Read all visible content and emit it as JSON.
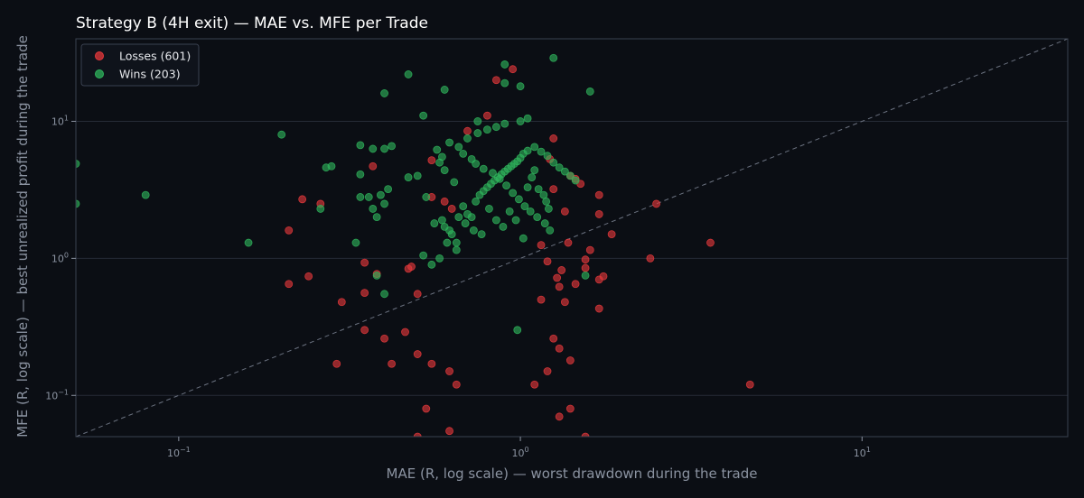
{
  "chart_data": {
    "type": "scatter",
    "title": "Strategy B (4H exit) — MAE vs. MFE per Trade",
    "xlabel": "MAE (R, log scale) — worst drawdown during the trade",
    "ylabel": "MFE (R, log scale) — best unrealized profit during the trade",
    "x_scale": "log",
    "y_scale": "log",
    "xlim": [
      0.05,
      40
    ],
    "ylim": [
      0.05,
      40
    ],
    "x_ticks": [
      {
        "base": "10",
        "exp": "−1",
        "value": 0.1
      },
      {
        "base": "10",
        "exp": "0",
        "value": 1
      },
      {
        "base": "10",
        "exp": "1",
        "value": 10
      }
    ],
    "y_ticks": [
      {
        "base": "10",
        "exp": "−1",
        "value": 0.1
      },
      {
        "base": "10",
        "exp": "0",
        "value": 1
      },
      {
        "base": "10",
        "exp": "1",
        "value": 10
      }
    ],
    "grid": "horizontal major",
    "reference_line": "y = x (dashed)",
    "legend_position": "top-left",
    "series": [
      {
        "name": "Losses (601)",
        "color": "#e5383b",
        "points": [
          [
            1.25,
            7.5
          ],
          [
            0.95,
            24
          ],
          [
            0.85,
            20
          ],
          [
            0.8,
            11
          ],
          [
            0.7,
            8.5
          ],
          [
            0.55,
            5.2
          ],
          [
            0.37,
            4.7
          ],
          [
            0.23,
            2.7
          ],
          [
            0.26,
            2.5
          ],
          [
            0.21,
            1.6
          ],
          [
            0.21,
            0.65
          ],
          [
            0.24,
            0.74
          ],
          [
            0.3,
            0.48
          ],
          [
            0.35,
            0.93
          ],
          [
            0.38,
            0.77
          ],
          [
            0.35,
            0.56
          ],
          [
            0.35,
            0.3
          ],
          [
            0.29,
            0.17
          ],
          [
            0.4,
            0.26
          ],
          [
            0.42,
            0.17
          ],
          [
            0.46,
            0.29
          ],
          [
            0.5,
            0.55
          ],
          [
            0.47,
            0.84
          ],
          [
            0.48,
            0.87
          ],
          [
            0.55,
            2.8
          ],
          [
            0.6,
            2.6
          ],
          [
            0.63,
            2.3
          ],
          [
            1.7,
            2.9
          ],
          [
            1.7,
            2.1
          ],
          [
            1.85,
            1.5
          ],
          [
            1.75,
            0.74
          ],
          [
            1.7,
            0.7
          ],
          [
            1.7,
            0.43
          ],
          [
            1.55,
            0.98
          ],
          [
            1.55,
            0.85
          ],
          [
            2.5,
            2.5
          ],
          [
            2.4,
            1.0
          ],
          [
            3.6,
            1.3
          ],
          [
            4.7,
            0.12
          ],
          [
            1.55,
            0.05
          ],
          [
            1.3,
            0.07
          ],
          [
            1.4,
            0.08
          ],
          [
            0.62,
            0.15
          ],
          [
            0.65,
            0.12
          ],
          [
            0.55,
            0.17
          ],
          [
            0.5,
            0.2
          ],
          [
            0.5,
            0.05
          ],
          [
            0.53,
            0.08
          ],
          [
            0.62,
            0.055
          ],
          [
            1.35,
            2.2
          ],
          [
            1.4,
            4.0
          ],
          [
            1.45,
            3.8
          ],
          [
            1.5,
            3.5
          ],
          [
            1.25,
            3.2
          ],
          [
            1.22,
            5.3
          ],
          [
            1.15,
            0.5
          ],
          [
            1.3,
            0.62
          ],
          [
            1.35,
            0.48
          ],
          [
            1.4,
            0.18
          ],
          [
            1.3,
            0.22
          ],
          [
            1.25,
            0.26
          ],
          [
            1.2,
            0.15
          ],
          [
            1.1,
            0.12
          ],
          [
            1.15,
            1.25
          ],
          [
            1.2,
            0.95
          ],
          [
            1.28,
            0.72
          ],
          [
            1.32,
            0.82
          ],
          [
            1.45,
            0.65
          ],
          [
            1.6,
            1.15
          ],
          [
            1.38,
            1.3
          ]
        ]
      },
      {
        "name": "Wins (203)",
        "color": "#2fb45c",
        "points": [
          [
            1.25,
            29
          ],
          [
            0.9,
            26
          ],
          [
            0.47,
            22
          ],
          [
            0.6,
            17
          ],
          [
            0.4,
            16
          ],
          [
            1.6,
            16.5
          ],
          [
            0.9,
            19
          ],
          [
            1.0,
            18
          ],
          [
            0.52,
            11
          ],
          [
            0.75,
            10
          ],
          [
            1.0,
            10
          ],
          [
            1.05,
            10.5
          ],
          [
            0.2,
            8
          ],
          [
            0.34,
            6.7
          ],
          [
            0.37,
            6.3
          ],
          [
            0.42,
            6.6
          ],
          [
            0.4,
            6.3
          ],
          [
            0.27,
            4.6
          ],
          [
            0.28,
            4.7
          ],
          [
            0.34,
            4.1
          ],
          [
            0.34,
            2.8
          ],
          [
            0.36,
            2.8
          ],
          [
            0.38,
            2.0
          ],
          [
            0.37,
            2.3
          ],
          [
            0.39,
            2.9
          ],
          [
            0.4,
            2.5
          ],
          [
            0.41,
            3.2
          ],
          [
            0.47,
            3.9
          ],
          [
            0.5,
            4.0
          ],
          [
            0.05,
            4.9
          ],
          [
            0.05,
            2.5
          ],
          [
            0.08,
            2.9
          ],
          [
            0.16,
            1.3
          ],
          [
            0.26,
            2.3
          ],
          [
            0.33,
            1.3
          ],
          [
            0.38,
            0.75
          ],
          [
            0.4,
            0.55
          ],
          [
            0.53,
            2.8
          ],
          [
            0.56,
            1.8
          ],
          [
            0.59,
            1.9
          ],
          [
            0.6,
            1.7
          ],
          [
            0.62,
            1.6
          ],
          [
            0.63,
            1.5
          ],
          [
            0.65,
            1.3
          ],
          [
            0.66,
            2.0
          ],
          [
            0.68,
            2.4
          ],
          [
            0.7,
            2.1
          ],
          [
            0.72,
            2.0
          ],
          [
            0.74,
            2.6
          ],
          [
            0.76,
            2.9
          ],
          [
            0.78,
            3.1
          ],
          [
            0.8,
            3.3
          ],
          [
            0.82,
            3.5
          ],
          [
            0.84,
            3.7
          ],
          [
            0.86,
            3.9
          ],
          [
            0.88,
            4.1
          ],
          [
            0.9,
            4.3
          ],
          [
            0.92,
            4.5
          ],
          [
            0.94,
            4.7
          ],
          [
            0.96,
            4.9
          ],
          [
            0.98,
            5.1
          ],
          [
            1.0,
            5.4
          ],
          [
            1.02,
            5.8
          ],
          [
            1.05,
            6.1
          ],
          [
            1.1,
            6.5
          ],
          [
            1.15,
            6.0
          ],
          [
            1.2,
            5.6
          ],
          [
            1.25,
            5.0
          ],
          [
            1.3,
            4.6
          ],
          [
            1.35,
            4.3
          ],
          [
            1.4,
            4.0
          ],
          [
            1.45,
            3.7
          ],
          [
            0.7,
            7.5
          ],
          [
            0.75,
            8.2
          ],
          [
            0.8,
            8.7
          ],
          [
            0.85,
            9.1
          ],
          [
            0.9,
            9.6
          ],
          [
            0.62,
            7.0
          ],
          [
            0.66,
            6.5
          ],
          [
            0.68,
            5.8
          ],
          [
            0.72,
            5.3
          ],
          [
            0.74,
            4.9
          ],
          [
            0.78,
            4.5
          ],
          [
            0.83,
            4.2
          ],
          [
            0.87,
            3.8
          ],
          [
            0.91,
            3.4
          ],
          [
            0.95,
            3.0
          ],
          [
            0.99,
            2.7
          ],
          [
            1.03,
            2.4
          ],
          [
            1.07,
            2.2
          ],
          [
            1.12,
            2.0
          ],
          [
            1.18,
            1.8
          ],
          [
            1.22,
            1.6
          ],
          [
            0.57,
            6.2
          ],
          [
            0.59,
            5.5
          ],
          [
            0.58,
            5.0
          ],
          [
            0.6,
            4.4
          ],
          [
            0.64,
            3.6
          ],
          [
            1.55,
            0.75
          ],
          [
            0.98,
            0.3
          ],
          [
            1.02,
            1.4
          ],
          [
            0.97,
            1.9
          ],
          [
            0.93,
            2.2
          ],
          [
            0.89,
            1.7
          ],
          [
            0.85,
            1.9
          ],
          [
            0.81,
            2.3
          ],
          [
            0.77,
            1.5
          ],
          [
            0.73,
            1.6
          ],
          [
            0.69,
            1.8
          ],
          [
            0.65,
            1.15
          ],
          [
            0.61,
            1.3
          ],
          [
            0.58,
            1.0
          ],
          [
            0.55,
            0.9
          ],
          [
            0.52,
            1.05
          ],
          [
            1.05,
            3.3
          ],
          [
            1.08,
            3.9
          ],
          [
            1.1,
            4.4
          ],
          [
            1.13,
            3.2
          ],
          [
            1.17,
            2.9
          ],
          [
            1.19,
            2.6
          ],
          [
            1.21,
            2.3
          ]
        ]
      }
    ]
  }
}
